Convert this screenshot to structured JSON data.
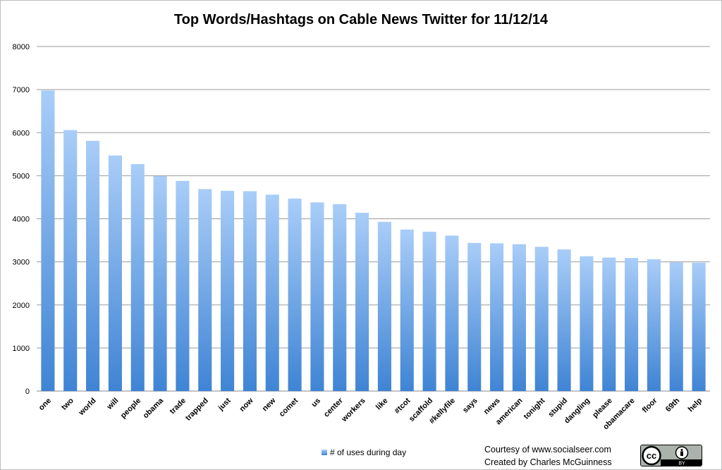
{
  "chart_data": {
    "type": "bar",
    "title": "Top Words/Hashtags on Cable News Twitter for 11/12/14",
    "categories": [
      "one",
      "two",
      "world",
      "will",
      "people",
      "obama",
      "trade",
      "trapped",
      "just",
      "now",
      "new",
      "comet",
      "us",
      "center",
      "workers",
      "like",
      "#tcot",
      "scaffold",
      "#kellyfile",
      "says",
      "news",
      "american",
      "tonight",
      "stupid",
      "dangling",
      "please",
      "obamacare",
      "floor",
      "69th",
      "help"
    ],
    "series": [
      {
        "name": "# of uses during day",
        "values": [
          6980,
          6060,
          5810,
          5470,
          5270,
          4990,
          4880,
          4690,
          4650,
          4640,
          4560,
          4470,
          4380,
          4340,
          4140,
          3930,
          3750,
          3700,
          3610,
          3440,
          3430,
          3410,
          3350,
          3290,
          3130,
          3100,
          3090,
          3060,
          2990,
          2980
        ]
      }
    ],
    "ylim": [
      0,
      8000
    ],
    "yticks": [
      0,
      1000,
      2000,
      3000,
      4000,
      5000,
      6000,
      7000,
      8000
    ],
    "grid": true,
    "legend": "bottom",
    "bar_color": "#5a99e3"
  },
  "credits": {
    "line1": "Courtesy of www.socialseer.com",
    "line2": "Created by Charles McGuinness"
  },
  "license_badge": {
    "cc_text": "cc",
    "by_text": "BY",
    "icons": [
      "creative-commons-icon",
      "attribution-person-icon"
    ]
  }
}
